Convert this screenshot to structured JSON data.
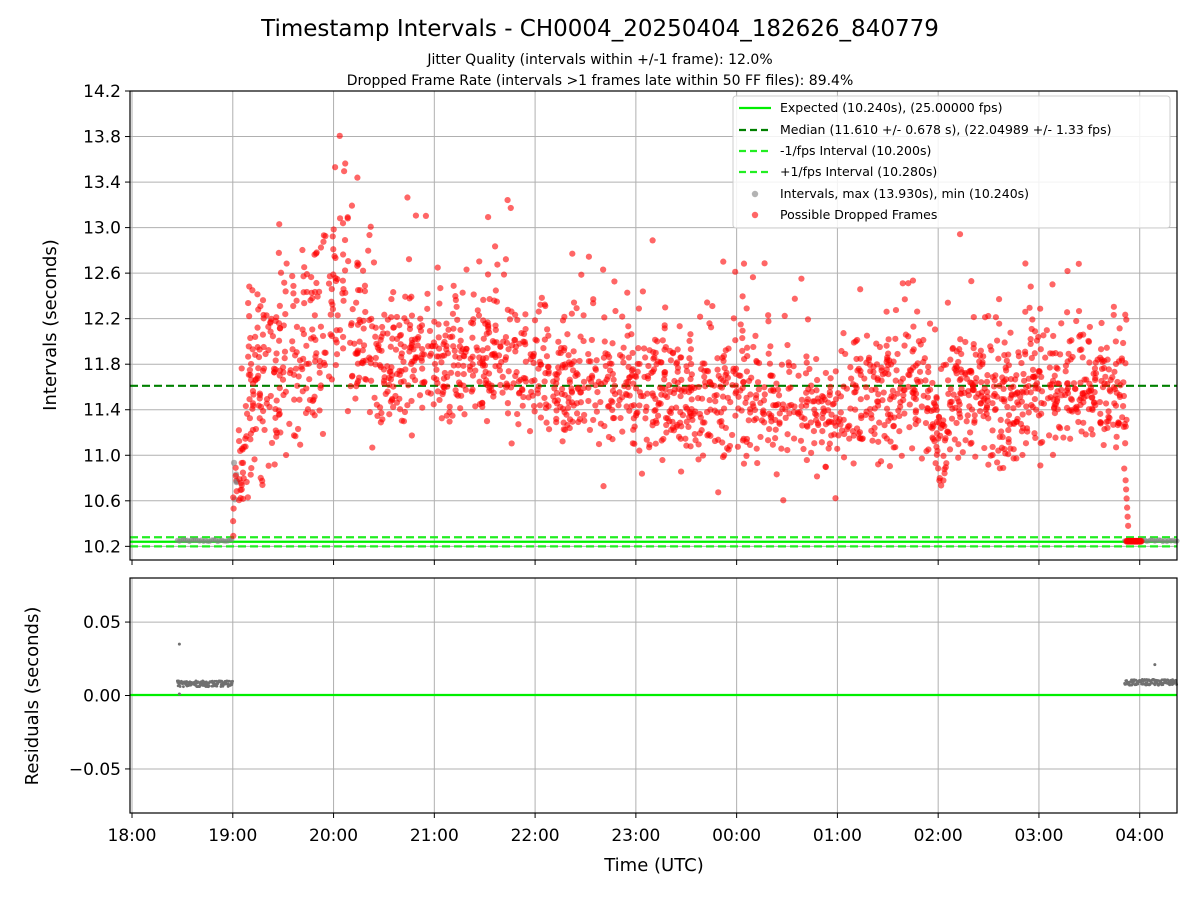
{
  "chart_data": [
    {
      "type": "scatter",
      "title": "Timestamp Intervals - CH0004_20250404_182626_840779",
      "subtitles": [
        "Jitter Quality (intervals within +/-1 frame): 12.0%",
        "Dropped Frame Rate (intervals >1 frames late within 50 FF files): 89.4%"
      ],
      "xlabel": "",
      "ylabel": "Intervals (seconds)",
      "x_range_hours": [
        17.98,
        28.37
      ],
      "ylim": [
        10.08,
        14.2
      ],
      "y_ticks": [
        "10.2",
        "10.6",
        "11.0",
        "11.4",
        "11.8",
        "12.2",
        "12.6",
        "13.0",
        "13.4",
        "13.8",
        "14.2"
      ],
      "y_tick_values": [
        10.2,
        10.6,
        11.0,
        11.4,
        11.8,
        12.2,
        12.6,
        13.0,
        13.4,
        13.8,
        14.2
      ],
      "grid": true,
      "legend_position": "upper-right",
      "lines": [
        {
          "name": "Expected (10.240s), (25.00000 fps)",
          "y": 10.24,
          "style": "solid",
          "color": "#00ee00"
        },
        {
          "name": "Median (11.610 +/- 0.678 s), (22.04989 +/- 1.33 fps)",
          "y": 11.61,
          "style": "dashed",
          "color": "#008000"
        },
        {
          "name": "-1/fps Interval (10.200s)",
          "y": 10.2,
          "style": "dashed",
          "color": "#22ee22"
        },
        {
          "name": "+1/fps Interval (10.280s)",
          "y": 10.28,
          "style": "dashed",
          "color": "#22ee22"
        }
      ],
      "series": [
        {
          "name": "Intervals, max (13.930s), min (10.240s)",
          "color": "#808080"
        },
        {
          "name": "Possible Dropped Frames",
          "color": "#ff0000"
        }
      ],
      "stats": {
        "max_interval": 13.93,
        "min_interval": 10.24,
        "median": 11.61,
        "median_std": 0.678
      },
      "envelope_hour_vs_center": [
        [
          19.02,
          10.45
        ],
        [
          19.1,
          11.2
        ],
        [
          19.2,
          11.6
        ],
        [
          19.5,
          11.8
        ],
        [
          19.9,
          12.1
        ],
        [
          20.05,
          12.5
        ],
        [
          20.2,
          12.2
        ],
        [
          20.5,
          11.8
        ],
        [
          21.0,
          11.85
        ],
        [
          21.5,
          11.9
        ],
        [
          22.0,
          11.7
        ],
        [
          22.5,
          11.65
        ],
        [
          23.0,
          11.55
        ],
        [
          23.5,
          11.5
        ],
        [
          24.0,
          11.5
        ],
        [
          24.5,
          11.45
        ],
        [
          25.0,
          11.4
        ],
        [
          25.5,
          11.55
        ],
        [
          25.75,
          11.65
        ],
        [
          26.0,
          11.3
        ],
        [
          26.3,
          11.55
        ],
        [
          26.6,
          11.45
        ],
        [
          27.0,
          11.55
        ],
        [
          27.5,
          11.6
        ],
        [
          27.85,
          11.55
        ]
      ],
      "notes_regions": {
        "gray_baseline_hours": [
          [
            18.45,
            19.0
          ],
          [
            27.85,
            28.37
          ]
        ],
        "red_low_cluster_hours": [
          27.87,
          28.02
        ]
      }
    },
    {
      "type": "scatter",
      "xlabel": "Time (UTC)",
      "ylabel": "Residuals (seconds)",
      "ylim": [
        -0.08,
        0.08
      ],
      "y_ticks": [
        "−0.05",
        "0.00",
        "0.05"
      ],
      "y_tick_values": [
        -0.05,
        0.0,
        0.05
      ],
      "x_ticks": [
        "18:00",
        "19:00",
        "20:00",
        "21:00",
        "22:00",
        "23:00",
        "00:00",
        "01:00",
        "02:00",
        "03:00",
        "04:00"
      ],
      "x_tick_hours": [
        18,
        19,
        20,
        21,
        22,
        23,
        24,
        25,
        26,
        27,
        28
      ],
      "grid": true,
      "zero_line_color": "#00ee00",
      "series": [
        {
          "name": "residuals",
          "color": "#808080",
          "clusters": [
            {
              "hours": [
                18.45,
                19.0
              ],
              "value": 0.008
            },
            {
              "hours": [
                27.85,
                28.37
              ],
              "value": 0.009
            }
          ],
          "outliers": [
            [
              18.47,
              0.035
            ],
            [
              28.15,
              0.021
            ],
            [
              18.47,
              0.001
            ]
          ]
        }
      ]
    }
  ]
}
